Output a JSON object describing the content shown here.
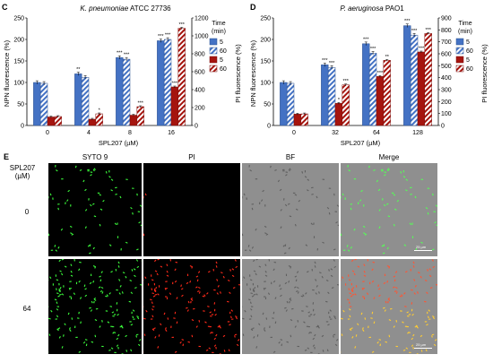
{
  "panels": {
    "C": {
      "letter": "C",
      "title_italic": "K. pneumoniae",
      "title_rest": " ATCC 27736",
      "xlabel": "SPL207 (µM)",
      "ylabel_left": "NPN fluorescence (%)",
      "ylabel_right": "PI fluorescence (%)"
    },
    "D": {
      "letter": "D",
      "title_italic": "P. aeruginosa",
      "title_rest": " PAO1",
      "xlabel": "SPL207 (µM)",
      "ylabel_left": "NPN fluorescence (%)",
      "ylabel_right": "PI fluorescence (%)"
    },
    "E": {
      "letter": "E",
      "row_header": "SPL207",
      "row_header_unit": "(µM)",
      "col_headers": [
        "SYTO 9",
        "PI",
        "BF",
        "Merge"
      ],
      "rows": [
        "0",
        "64"
      ],
      "scale_label": "25 µm"
    }
  },
  "legend": {
    "title": "Time",
    "title_unit": "(min)",
    "entries": [
      "5",
      "60",
      "5",
      "60"
    ]
  },
  "colors": {
    "npn": "#4472c4",
    "pi": "#a5140e",
    "npn_edge": "#2f528f",
    "pi_edge": "#7b0e0a"
  },
  "chart_data": [
    {
      "type": "bar",
      "title": "K. pneumoniae ATCC 27736",
      "xlabel": "SPL207 (µM)",
      "ylabel": "NPN fluorescence (%)",
      "y2label": "PI fluorescence (%)",
      "categories": [
        "0",
        "4",
        "8",
        "16"
      ],
      "ylim": [
        0,
        250
      ],
      "y2lim": [
        0,
        1200
      ],
      "yticks": [
        0,
        50,
        100,
        150,
        200,
        250
      ],
      "y2ticks": [
        0,
        200,
        400,
        600,
        800,
        1000,
        1200
      ],
      "series": [
        {
          "name": "5",
          "axis": "left",
          "style": "solid",
          "color": "#4472c4",
          "values": [
            100,
            120,
            158,
            197
          ],
          "stars": [
            "",
            "**",
            "***",
            "***"
          ]
        },
        {
          "name": "60",
          "axis": "left",
          "style": "hatched",
          "color": "#4472c4",
          "values": [
            98,
            112,
            154,
            200
          ],
          "stars": [
            "",
            "",
            "***",
            "***"
          ]
        },
        {
          "name": "5",
          "axis": "right",
          "style": "solid",
          "color": "#a5140e",
          "values": [
            95,
            70,
            115,
            430
          ],
          "stars": [
            "",
            "",
            "",
            "***"
          ]
        },
        {
          "name": "60",
          "axis": "right",
          "style": "hatched",
          "color": "#a5140e",
          "values": [
            100,
            130,
            210,
            1085
          ],
          "stars": [
            "",
            "*",
            "***",
            "***"
          ]
        }
      ]
    },
    {
      "type": "bar",
      "title": "P. aeruginosa PAO1",
      "xlabel": "SPL207 (µM)",
      "ylabel": "NPN fluorescence (%)",
      "y2label": "PI fluorescence (%)",
      "categories": [
        "0",
        "32",
        "64",
        "128"
      ],
      "ylim": [
        0,
        250
      ],
      "y2lim": [
        0,
        900
      ],
      "yticks": [
        0,
        50,
        100,
        150,
        200,
        250
      ],
      "y2ticks": [
        0,
        100,
        200,
        300,
        400,
        500,
        600,
        700,
        800,
        900
      ],
      "series": [
        {
          "name": "5",
          "axis": "left",
          "style": "solid",
          "color": "#4472c4",
          "values": [
            100,
            141,
            190,
            232
          ],
          "stars": [
            "",
            "***",
            "***",
            "***"
          ]
        },
        {
          "name": "60",
          "axis": "left",
          "style": "hatched",
          "color": "#4472c4",
          "values": [
            98,
            135,
            168,
            210
          ],
          "stars": [
            "",
            "***",
            "***",
            "***"
          ]
        },
        {
          "name": "5",
          "axis": "right",
          "style": "solid",
          "color": "#a5140e",
          "values": [
            95,
            185,
            410,
            615
          ],
          "stars": [
            "",
            "*",
            "***",
            "***"
          ]
        },
        {
          "name": "60",
          "axis": "right",
          "style": "hatched",
          "color": "#a5140e",
          "values": [
            97,
            340,
            545,
            770
          ],
          "stars": [
            "",
            "***",
            "**",
            "***"
          ]
        }
      ]
    }
  ]
}
